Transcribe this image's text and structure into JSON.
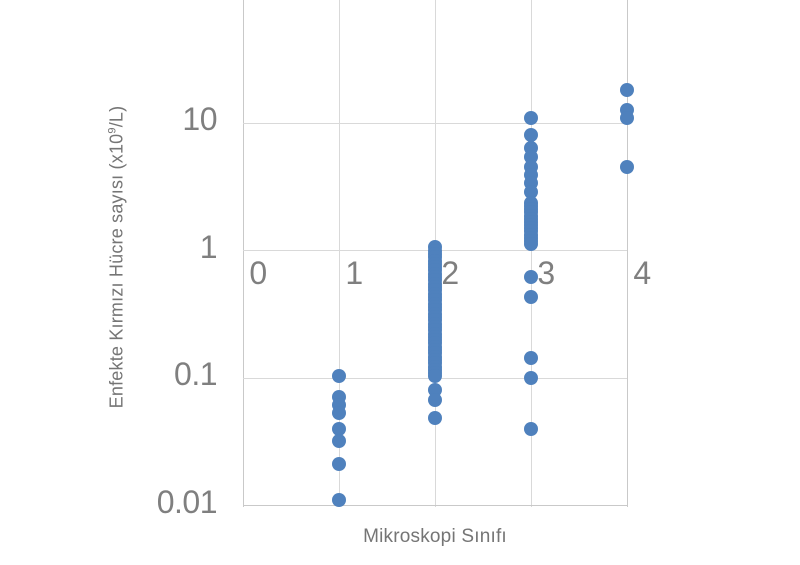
{
  "chart_data": {
    "type": "scatter",
    "title": "",
    "xlabel": "Mikroskopi Sınıfı",
    "ylabel_pre": "Enfekte Kırmızı Hücre sayısı  (x10",
    "ylabel_sup": "9",
    "ylabel_post": "/L)",
    "x_axis": {
      "ticks": [
        "0",
        "1",
        "2",
        "3",
        "4"
      ],
      "tick_values": [
        0,
        1,
        2,
        3,
        4
      ],
      "range": [
        0,
        4
      ]
    },
    "y_axis": {
      "scale": "log",
      "ticks": [
        "10",
        "1",
        "0.1",
        "0.01"
      ],
      "tick_values": [
        10,
        1,
        0.1,
        0.01
      ],
      "range": [
        0.01,
        100
      ]
    },
    "grid": true,
    "legend": false,
    "marker_color": "#4f81bd",
    "series": [
      {
        "name": "mikroskopi-sinifi-1",
        "x": 1,
        "values": [
          0.104,
          0.071,
          0.061,
          0.053,
          0.04,
          0.032,
          0.021,
          0.011
        ]
      },
      {
        "name": "mikroskopi-sinifi-2",
        "x": 2,
        "values": [
          1.06,
          0.998,
          0.94,
          0.885,
          0.834,
          0.785,
          0.74,
          0.697,
          0.656,
          0.618,
          0.582,
          0.548,
          0.516,
          0.487,
          0.458,
          0.432,
          0.407,
          0.383,
          0.361,
          0.34,
          0.32,
          0.301,
          0.284,
          0.267,
          0.252,
          0.237,
          0.223,
          0.21,
          0.198,
          0.187,
          0.176,
          0.166,
          0.156,
          0.147,
          0.138,
          0.13,
          0.123,
          0.116,
          0.109,
          0.103,
          0.081,
          0.067,
          0.049
        ]
      },
      {
        "name": "mikroskopi-sinifi-3",
        "x": 3,
        "values": [
          10.9,
          8.05,
          6.37,
          5.41,
          4.52,
          3.91,
          3.38,
          2.88,
          2.36,
          2.23,
          2.1,
          1.99,
          1.87,
          1.77,
          1.67,
          1.58,
          1.49,
          1.41,
          1.33,
          1.26,
          1.19,
          1.12,
          0.62,
          0.43,
          0.143,
          0.1,
          0.04
        ]
      },
      {
        "name": "mikroskopi-sinifi-4",
        "x": 4,
        "values": [
          18.1,
          12.6,
          10.9,
          4.52
        ]
      }
    ]
  },
  "colors": {
    "marker": "#4f81bd",
    "grid": "#d9d9d9",
    "axis": "#c9c9c9",
    "tick_text": "#7f7f7f",
    "title_text": "#757575",
    "background": "#ffffff"
  }
}
